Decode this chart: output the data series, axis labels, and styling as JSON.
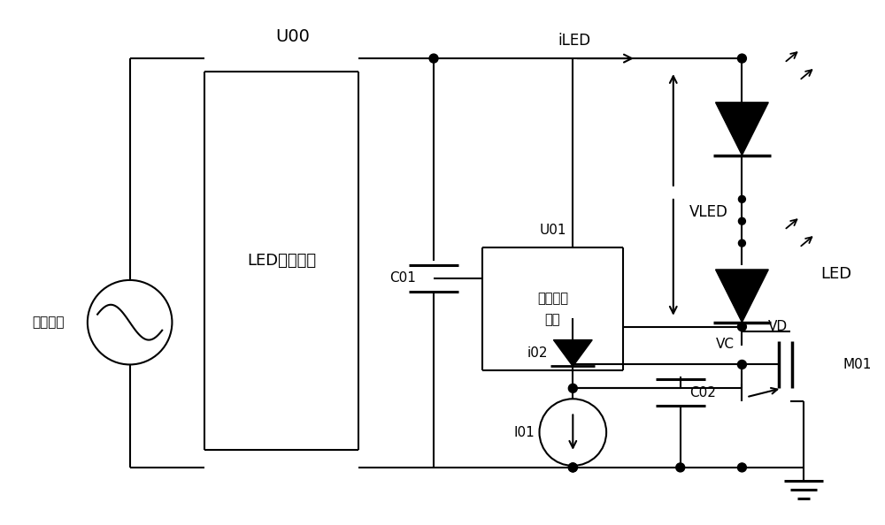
{
  "bg_color": "#ffffff",
  "line_color": "#000000",
  "figsize": [
    10.0,
    5.94
  ],
  "dpi": 100,
  "lw": 1.5,
  "U00_label": "U00",
  "LED_drive_label": "LED驱动电路",
  "AC_label": "交流输入",
  "C01_label": "C01",
  "U01_label": "U01",
  "current_gen_line1": "电流产生",
  "current_gen_line2": "电路",
  "iLED_label": "iLED",
  "VLED_label": "VLED",
  "LED_label": "LED",
  "VD_label": "VD",
  "i02_label": "i02",
  "I01_label": "I01",
  "C02_label": "C02",
  "VC_label": "VC",
  "M01_label": "M01"
}
